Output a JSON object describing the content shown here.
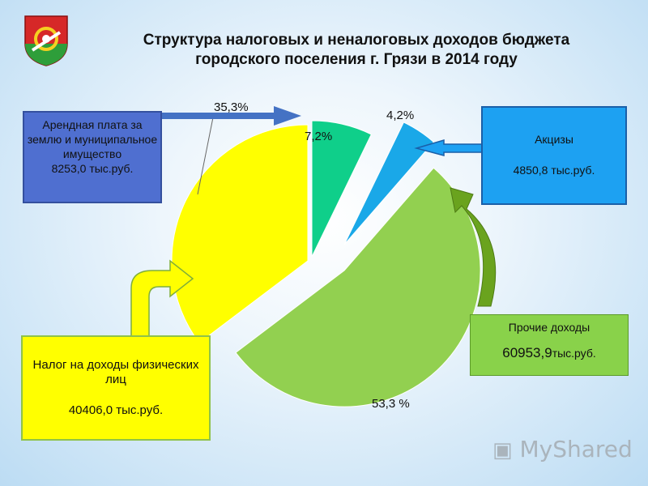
{
  "title_line1": "Структура налоговых и неналоговых доходов бюджета",
  "title_line2": "городского поселения г. Грязи в 2014 году",
  "chart_data": {
    "type": "pie",
    "title": "Структура налоговых и неналоговых доходов бюджета городского поселения г. Грязи в 2014 году",
    "slices": [
      {
        "label": "7,2%",
        "value": 7.2,
        "color": "#0fcf8a"
      },
      {
        "label": "4,2%",
        "value": 4.2,
        "color": "#1aa8e8"
      },
      {
        "label": "53,3 %",
        "value": 53.3,
        "color": "#92d050"
      },
      {
        "label": "35,3%",
        "value": 35.3,
        "color": "#ffff00"
      }
    ]
  },
  "boxes": {
    "arenda_name": "Арендная плата за землю и муниципальное имущество",
    "arenda_value": "8253,0 тыс.руб.",
    "akcizy_name": "Акцизы",
    "akcizy_value": "4850,8 тыс.руб.",
    "prochie_name": "Прочие доходы",
    "prochie_number": "60953,9",
    "prochie_unit": "тыс.руб.",
    "ndfl_name": "Налог на доходы физических лиц",
    "ndfl_value": "40406,0 тыс.руб."
  },
  "watermark": "MyShared",
  "colors": {
    "arrow_blue": "#4472c4",
    "arrow_green": "#6aa31e",
    "arrow_yellow": "#ffff00"
  }
}
